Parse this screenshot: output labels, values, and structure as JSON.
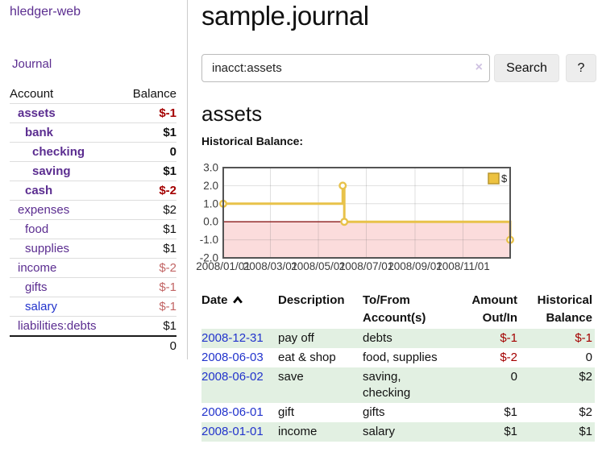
{
  "app": {
    "brand": "hledger-web",
    "nav_journal": "Journal"
  },
  "sidebar": {
    "header": {
      "account": "Account",
      "balance": "Balance"
    },
    "accounts": [
      {
        "name": "assets",
        "balance": "$-1"
      },
      {
        "name": "bank",
        "balance": "$1"
      },
      {
        "name": "checking",
        "balance": "0"
      },
      {
        "name": "saving",
        "balance": "$1"
      },
      {
        "name": "cash",
        "balance": "$-2"
      },
      {
        "name": "expenses",
        "balance": "$2"
      },
      {
        "name": "food",
        "balance": "$1"
      },
      {
        "name": "supplies",
        "balance": "$1"
      },
      {
        "name": "income",
        "balance": "$-2"
      },
      {
        "name": "gifts",
        "balance": "$-1"
      },
      {
        "name": "salary",
        "balance": "$-1"
      },
      {
        "name": "liabilities:debts",
        "balance": "$1"
      }
    ],
    "total": "0"
  },
  "header": {
    "title": "sample.journal"
  },
  "search": {
    "value": "inacct:assets",
    "clear_icon": "×",
    "button": "Search",
    "help_button": "?"
  },
  "account_page": {
    "title": "assets",
    "chart_label": "Historical Balance:"
  },
  "chart_data": {
    "type": "line",
    "title": "Historical Balance",
    "legend": [
      {
        "label": "$",
        "color": "#edc240"
      }
    ],
    "series": [
      {
        "name": "$",
        "color": "#e8c24a",
        "step": true,
        "points": [
          [
            "2008/01/01",
            1
          ],
          [
            "2008/06/01",
            2
          ],
          [
            "2008/06/03",
            0
          ],
          [
            "2008/12/31",
            -1
          ]
        ]
      }
    ],
    "xlim": [
      "2008/01/01",
      "2008/12/31"
    ],
    "ylim": [
      -2,
      3
    ],
    "x_ticks": [
      "2008/01/01",
      "2008/03/01",
      "2008/05/01",
      "2008/07/01",
      "2008/09/01",
      "2008/11/01"
    ],
    "y_ticks": [
      "3.0",
      "2.0",
      "1.0",
      "0.0",
      "-1.0",
      "-2.0"
    ],
    "grid": true,
    "legend_position": "top-right",
    "zero_line_color": "#8b1a1a",
    "negative_region_color": "#fbdcdc"
  },
  "register": {
    "headers": {
      "date": "Date",
      "description": "Description",
      "accounts": "To/From Account(s)",
      "amount": "Amount Out/In",
      "balance": "Historical Balance"
    },
    "sort_column": "Date",
    "sort_direction": "ascending",
    "rows": [
      {
        "date": "2008-12-31",
        "description": "pay off",
        "accounts": "debts",
        "amount": "$-1",
        "balance": "$-1"
      },
      {
        "date": "2008-06-03",
        "description": "eat & shop",
        "accounts": "food, supplies",
        "amount": "$-2",
        "balance": "0"
      },
      {
        "date": "2008-06-02",
        "description": "save",
        "accounts": "saving, checking",
        "amount": "0",
        "balance": "$2"
      },
      {
        "date": "2008-06-01",
        "description": "gift",
        "accounts": "gifts",
        "amount": "$1",
        "balance": "$2"
      },
      {
        "date": "2008-01-01",
        "description": "income",
        "accounts": "salary",
        "amount": "$1",
        "balance": "$1"
      }
    ]
  }
}
